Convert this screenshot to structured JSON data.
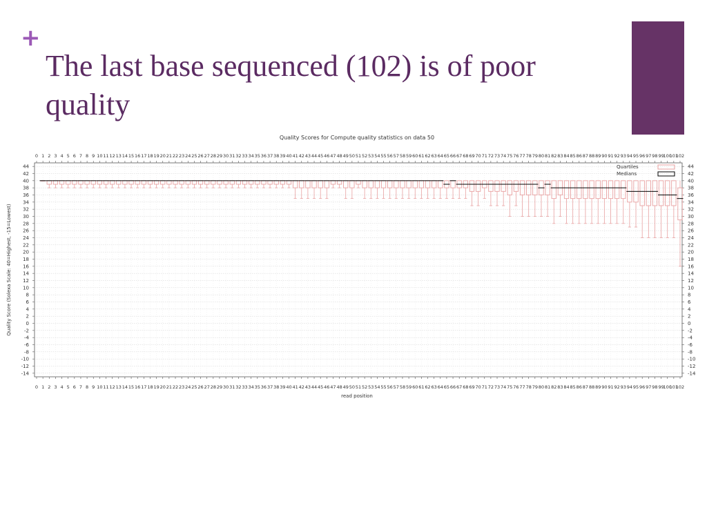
{
  "slide": {
    "bullet": "+",
    "title": "The last base sequenced (102) is of poor quality",
    "accent_color": "#663366",
    "title_color": "#5b2b62"
  },
  "chart_data": {
    "type": "boxplot",
    "title": "Quality Scores for Compute quality statistics on data 50",
    "ylabel": "Quality Score (Solexa Scale: 40=Highest, -15=Lowest)",
    "xlabel": "read position",
    "ylim": [
      -15,
      45
    ],
    "yticks": [
      44,
      42,
      40,
      38,
      36,
      34,
      32,
      30,
      28,
      26,
      24,
      22,
      20,
      18,
      16,
      14,
      12,
      10,
      8,
      6,
      4,
      2,
      0,
      -2,
      -4,
      -6,
      -8,
      -10,
      -12,
      -14
    ],
    "grid": true,
    "legend_position": "top-right",
    "legend": [
      {
        "label": "Quartiles",
        "color": "#e8a0a0"
      },
      {
        "label": "Medians",
        "color": "#000000"
      }
    ],
    "x": [
      0,
      1,
      2,
      3,
      4,
      5,
      6,
      7,
      8,
      9,
      10,
      11,
      12,
      13,
      14,
      15,
      16,
      17,
      18,
      19,
      20,
      21,
      22,
      23,
      24,
      25,
      26,
      27,
      28,
      29,
      30,
      31,
      32,
      33,
      34,
      35,
      36,
      37,
      38,
      39,
      40,
      41,
      42,
      43,
      44,
      45,
      46,
      47,
      48,
      49,
      50,
      51,
      52,
      53,
      54,
      55,
      56,
      57,
      58,
      59,
      60,
      61,
      62,
      63,
      64,
      65,
      66,
      67,
      68,
      69,
      70,
      71,
      72,
      73,
      74,
      75,
      76,
      77,
      78,
      79,
      80,
      81,
      82,
      83,
      84,
      85,
      86,
      87,
      88,
      89,
      90,
      91,
      92,
      93,
      94,
      95,
      96,
      97,
      98,
      99,
      100,
      101,
      102
    ],
    "boxes": [
      {
        "pos": 1,
        "min": 40,
        "q1": 40,
        "med": 40,
        "q3": 40,
        "max": 40
      },
      {
        "pos": 2,
        "min": 38,
        "q1": 39,
        "med": 40,
        "q3": 40,
        "max": 40
      },
      {
        "pos": 3,
        "min": 38,
        "q1": 39,
        "med": 40,
        "q3": 40,
        "max": 40
      },
      {
        "pos": 4,
        "min": 38,
        "q1": 39,
        "med": 40,
        "q3": 40,
        "max": 40
      },
      {
        "pos": 5,
        "min": 38,
        "q1": 39,
        "med": 40,
        "q3": 40,
        "max": 40
      },
      {
        "pos": 6,
        "min": 38,
        "q1": 39,
        "med": 40,
        "q3": 40,
        "max": 40
      },
      {
        "pos": 7,
        "min": 38,
        "q1": 39,
        "med": 40,
        "q3": 40,
        "max": 40
      },
      {
        "pos": 8,
        "min": 38,
        "q1": 39,
        "med": 40,
        "q3": 40,
        "max": 40
      },
      {
        "pos": 9,
        "min": 38,
        "q1": 39,
        "med": 40,
        "q3": 40,
        "max": 40
      },
      {
        "pos": 10,
        "min": 38,
        "q1": 39,
        "med": 40,
        "q3": 40,
        "max": 40
      },
      {
        "pos": 11,
        "min": 38,
        "q1": 39,
        "med": 40,
        "q3": 40,
        "max": 40
      },
      {
        "pos": 12,
        "min": 38,
        "q1": 39,
        "med": 40,
        "q3": 40,
        "max": 40
      },
      {
        "pos": 13,
        "min": 38,
        "q1": 39,
        "med": 40,
        "q3": 40,
        "max": 40
      },
      {
        "pos": 14,
        "min": 38,
        "q1": 39,
        "med": 40,
        "q3": 40,
        "max": 40
      },
      {
        "pos": 15,
        "min": 38,
        "q1": 39,
        "med": 40,
        "q3": 40,
        "max": 40
      },
      {
        "pos": 16,
        "min": 38,
        "q1": 39,
        "med": 40,
        "q3": 40,
        "max": 40
      },
      {
        "pos": 17,
        "min": 38,
        "q1": 39,
        "med": 40,
        "q3": 40,
        "max": 40
      },
      {
        "pos": 18,
        "min": 38,
        "q1": 39,
        "med": 40,
        "q3": 40,
        "max": 40
      },
      {
        "pos": 19,
        "min": 38,
        "q1": 39,
        "med": 40,
        "q3": 40,
        "max": 40
      },
      {
        "pos": 20,
        "min": 38,
        "q1": 39,
        "med": 40,
        "q3": 40,
        "max": 40
      },
      {
        "pos": 21,
        "min": 38,
        "q1": 39,
        "med": 40,
        "q3": 40,
        "max": 40
      },
      {
        "pos": 22,
        "min": 38,
        "q1": 39,
        "med": 40,
        "q3": 40,
        "max": 40
      },
      {
        "pos": 23,
        "min": 38,
        "q1": 39,
        "med": 40,
        "q3": 40,
        "max": 40
      },
      {
        "pos": 24,
        "min": 38,
        "q1": 39,
        "med": 40,
        "q3": 40,
        "max": 40
      },
      {
        "pos": 25,
        "min": 38,
        "q1": 39,
        "med": 40,
        "q3": 40,
        "max": 40
      },
      {
        "pos": 26,
        "min": 38,
        "q1": 39,
        "med": 40,
        "q3": 40,
        "max": 40
      },
      {
        "pos": 27,
        "min": 38,
        "q1": 39,
        "med": 40,
        "q3": 40,
        "max": 40
      },
      {
        "pos": 28,
        "min": 38,
        "q1": 39,
        "med": 40,
        "q3": 40,
        "max": 40
      },
      {
        "pos": 29,
        "min": 38,
        "q1": 39,
        "med": 40,
        "q3": 40,
        "max": 40
      },
      {
        "pos": 30,
        "min": 38,
        "q1": 39,
        "med": 40,
        "q3": 40,
        "max": 40
      },
      {
        "pos": 31,
        "min": 38,
        "q1": 39,
        "med": 40,
        "q3": 40,
        "max": 40
      },
      {
        "pos": 32,
        "min": 38,
        "q1": 39,
        "med": 40,
        "q3": 40,
        "max": 40
      },
      {
        "pos": 33,
        "min": 38,
        "q1": 39,
        "med": 40,
        "q3": 40,
        "max": 40
      },
      {
        "pos": 34,
        "min": 38,
        "q1": 39,
        "med": 40,
        "q3": 40,
        "max": 40
      },
      {
        "pos": 35,
        "min": 38,
        "q1": 39,
        "med": 40,
        "q3": 40,
        "max": 40
      },
      {
        "pos": 36,
        "min": 38,
        "q1": 39,
        "med": 40,
        "q3": 40,
        "max": 40
      },
      {
        "pos": 37,
        "min": 38,
        "q1": 39,
        "med": 40,
        "q3": 40,
        "max": 40
      },
      {
        "pos": 38,
        "min": 38,
        "q1": 39,
        "med": 40,
        "q3": 40,
        "max": 40
      },
      {
        "pos": 39,
        "min": 38,
        "q1": 39,
        "med": 40,
        "q3": 40,
        "max": 40
      },
      {
        "pos": 40,
        "min": 38,
        "q1": 39,
        "med": 40,
        "q3": 40,
        "max": 40
      },
      {
        "pos": 41,
        "min": 35,
        "q1": 38,
        "med": 40,
        "q3": 40,
        "max": 40
      },
      {
        "pos": 42,
        "min": 35,
        "q1": 38,
        "med": 40,
        "q3": 40,
        "max": 40
      },
      {
        "pos": 43,
        "min": 35,
        "q1": 38,
        "med": 40,
        "q3": 40,
        "max": 40
      },
      {
        "pos": 44,
        "min": 35,
        "q1": 38,
        "med": 40,
        "q3": 40,
        "max": 40
      },
      {
        "pos": 45,
        "min": 35,
        "q1": 38,
        "med": 40,
        "q3": 40,
        "max": 40
      },
      {
        "pos": 46,
        "min": 35,
        "q1": 38,
        "med": 40,
        "q3": 40,
        "max": 40
      },
      {
        "pos": 47,
        "min": 38,
        "q1": 39,
        "med": 40,
        "q3": 40,
        "max": 40
      },
      {
        "pos": 48,
        "min": 38,
        "q1": 39,
        "med": 40,
        "q3": 40,
        "max": 40
      },
      {
        "pos": 49,
        "min": 35,
        "q1": 38,
        "med": 40,
        "q3": 40,
        "max": 40
      },
      {
        "pos": 50,
        "min": 35,
        "q1": 38,
        "med": 40,
        "q3": 40,
        "max": 40
      },
      {
        "pos": 51,
        "min": 38,
        "q1": 39,
        "med": 40,
        "q3": 40,
        "max": 40
      },
      {
        "pos": 52,
        "min": 35,
        "q1": 38,
        "med": 40,
        "q3": 40,
        "max": 40
      },
      {
        "pos": 53,
        "min": 35,
        "q1": 38,
        "med": 40,
        "q3": 40,
        "max": 40
      },
      {
        "pos": 54,
        "min": 35,
        "q1": 38,
        "med": 40,
        "q3": 40,
        "max": 40
      },
      {
        "pos": 55,
        "min": 35,
        "q1": 38,
        "med": 40,
        "q3": 40,
        "max": 40
      },
      {
        "pos": 56,
        "min": 35,
        "q1": 38,
        "med": 40,
        "q3": 40,
        "max": 40
      },
      {
        "pos": 57,
        "min": 35,
        "q1": 38,
        "med": 40,
        "q3": 40,
        "max": 40
      },
      {
        "pos": 58,
        "min": 35,
        "q1": 38,
        "med": 40,
        "q3": 40,
        "max": 40
      },
      {
        "pos": 59,
        "min": 35,
        "q1": 38,
        "med": 40,
        "q3": 40,
        "max": 40
      },
      {
        "pos": 60,
        "min": 35,
        "q1": 38,
        "med": 40,
        "q3": 40,
        "max": 40
      },
      {
        "pos": 61,
        "min": 35,
        "q1": 38,
        "med": 40,
        "q3": 40,
        "max": 40
      },
      {
        "pos": 62,
        "min": 35,
        "q1": 38,
        "med": 40,
        "q3": 40,
        "max": 40
      },
      {
        "pos": 63,
        "min": 35,
        "q1": 38,
        "med": 40,
        "q3": 40,
        "max": 40
      },
      {
        "pos": 64,
        "min": 35,
        "q1": 38,
        "med": 40,
        "q3": 40,
        "max": 40
      },
      {
        "pos": 65,
        "min": 35,
        "q1": 38,
        "med": 39,
        "q3": 40,
        "max": 40
      },
      {
        "pos": 66,
        "min": 35,
        "q1": 38,
        "med": 40,
        "q3": 40,
        "max": 40
      },
      {
        "pos": 67,
        "min": 35,
        "q1": 38,
        "med": 39,
        "q3": 40,
        "max": 40
      },
      {
        "pos": 68,
        "min": 35,
        "q1": 38,
        "med": 39,
        "q3": 40,
        "max": 40
      },
      {
        "pos": 69,
        "min": 33,
        "q1": 37,
        "med": 39,
        "q3": 40,
        "max": 40
      },
      {
        "pos": 70,
        "min": 33,
        "q1": 37,
        "med": 39,
        "q3": 40,
        "max": 40
      },
      {
        "pos": 71,
        "min": 35,
        "q1": 38,
        "med": 39,
        "q3": 40,
        "max": 40
      },
      {
        "pos": 72,
        "min": 33,
        "q1": 37,
        "med": 39,
        "q3": 40,
        "max": 40
      },
      {
        "pos": 73,
        "min": 33,
        "q1": 37,
        "med": 39,
        "q3": 40,
        "max": 40
      },
      {
        "pos": 74,
        "min": 33,
        "q1": 37,
        "med": 39,
        "q3": 40,
        "max": 40
      },
      {
        "pos": 75,
        "min": 30,
        "q1": 36,
        "med": 39,
        "q3": 40,
        "max": 40
      },
      {
        "pos": 76,
        "min": 33,
        "q1": 37,
        "med": 39,
        "q3": 40,
        "max": 40
      },
      {
        "pos": 77,
        "min": 30,
        "q1": 36,
        "med": 39,
        "q3": 40,
        "max": 40
      },
      {
        "pos": 78,
        "min": 30,
        "q1": 36,
        "med": 39,
        "q3": 40,
        "max": 40
      },
      {
        "pos": 79,
        "min": 30,
        "q1": 36,
        "med": 39,
        "q3": 40,
        "max": 40
      },
      {
        "pos": 80,
        "min": 30,
        "q1": 36,
        "med": 38,
        "q3": 40,
        "max": 40
      },
      {
        "pos": 81,
        "min": 30,
        "q1": 36,
        "med": 39,
        "q3": 40,
        "max": 40
      },
      {
        "pos": 82,
        "min": 28,
        "q1": 35,
        "med": 38,
        "q3": 40,
        "max": 40
      },
      {
        "pos": 83,
        "min": 30,
        "q1": 36,
        "med": 38,
        "q3": 40,
        "max": 40
      },
      {
        "pos": 84,
        "min": 28,
        "q1": 35,
        "med": 38,
        "q3": 40,
        "max": 40
      },
      {
        "pos": 85,
        "min": 28,
        "q1": 35,
        "med": 38,
        "q3": 40,
        "max": 40
      },
      {
        "pos": 86,
        "min": 28,
        "q1": 35,
        "med": 38,
        "q3": 40,
        "max": 40
      },
      {
        "pos": 87,
        "min": 28,
        "q1": 35,
        "med": 38,
        "q3": 40,
        "max": 40
      },
      {
        "pos": 88,
        "min": 28,
        "q1": 35,
        "med": 38,
        "q3": 40,
        "max": 40
      },
      {
        "pos": 89,
        "min": 28,
        "q1": 35,
        "med": 38,
        "q3": 40,
        "max": 40
      },
      {
        "pos": 90,
        "min": 28,
        "q1": 35,
        "med": 38,
        "q3": 40,
        "max": 40
      },
      {
        "pos": 91,
        "min": 28,
        "q1": 35,
        "med": 38,
        "q3": 40,
        "max": 40
      },
      {
        "pos": 92,
        "min": 28,
        "q1": 35,
        "med": 38,
        "q3": 40,
        "max": 40
      },
      {
        "pos": 93,
        "min": 28,
        "q1": 35,
        "med": 38,
        "q3": 40,
        "max": 40
      },
      {
        "pos": 94,
        "min": 27,
        "q1": 34,
        "med": 37,
        "q3": 40,
        "max": 40
      },
      {
        "pos": 95,
        "min": 27,
        "q1": 34,
        "med": 37,
        "q3": 40,
        "max": 40
      },
      {
        "pos": 96,
        "min": 24,
        "q1": 33,
        "med": 37,
        "q3": 40,
        "max": 40
      },
      {
        "pos": 97,
        "min": 24,
        "q1": 33,
        "med": 37,
        "q3": 40,
        "max": 40
      },
      {
        "pos": 98,
        "min": 24,
        "q1": 33,
        "med": 37,
        "q3": 40,
        "max": 40
      },
      {
        "pos": 99,
        "min": 24,
        "q1": 33,
        "med": 36,
        "q3": 40,
        "max": 40
      },
      {
        "pos": 100,
        "min": 24,
        "q1": 33,
        "med": 36,
        "q3": 40,
        "max": 40
      },
      {
        "pos": 101,
        "min": 24,
        "q1": 33,
        "med": 36,
        "q3": 40,
        "max": 40
      },
      {
        "pos": 102,
        "min": 16,
        "q1": 29,
        "med": 35,
        "q3": 38,
        "max": 40
      }
    ],
    "box_color": "#e8a0a0",
    "median_color": "#000000"
  }
}
